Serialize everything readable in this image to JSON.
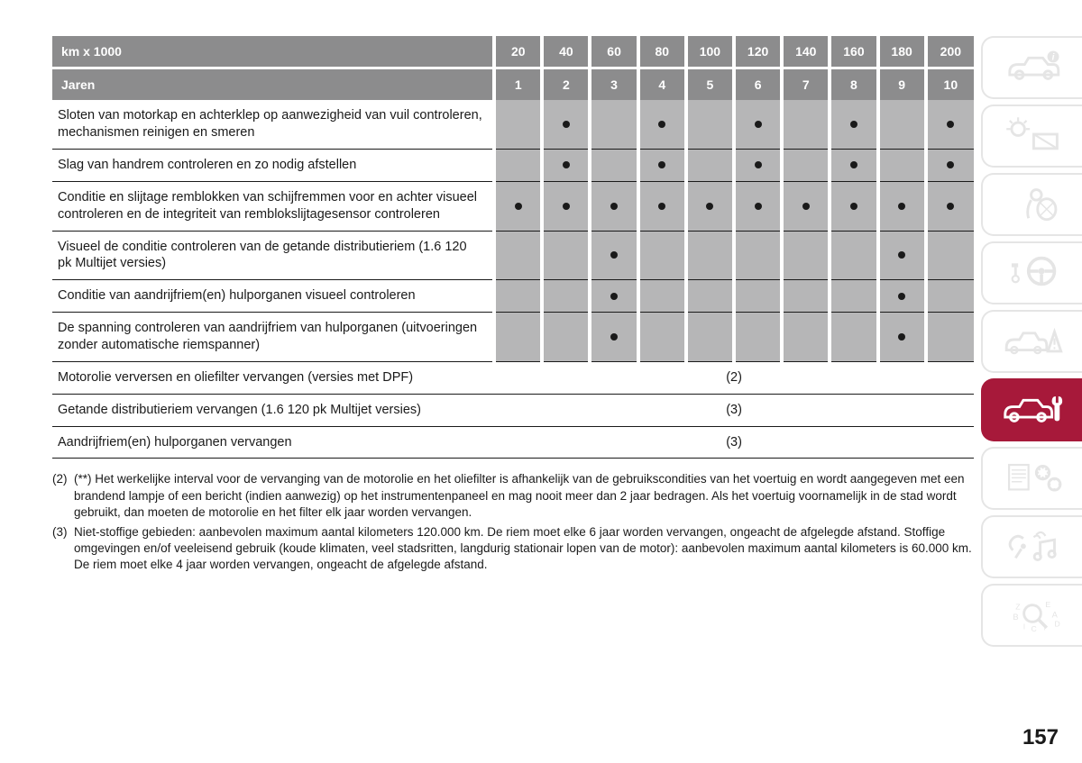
{
  "table": {
    "header_label_1": "km x 1000",
    "header_km": [
      "20",
      "40",
      "60",
      "80",
      "100",
      "120",
      "140",
      "160",
      "180",
      "200"
    ],
    "header_label_2": "Jaren",
    "header_years": [
      "1",
      "2",
      "3",
      "4",
      "5",
      "6",
      "7",
      "8",
      "9",
      "10"
    ],
    "colors": {
      "header_bg": "#8c8c8d",
      "header_fg": "#ffffff",
      "stripe_bg": "#b6b6b7",
      "gap": "#ffffff",
      "rule": "#1a1a1a",
      "dot": "#1a1a1a"
    },
    "rows": [
      {
        "label": "Sloten van motorkap en achterklep op aanwezigheid van vuil controleren, mechanismen reinigen en smeren",
        "marks": [
          0,
          1,
          0,
          1,
          0,
          1,
          0,
          1,
          0,
          1
        ]
      },
      {
        "label": "Slag van handrem controleren en zo nodig afstellen",
        "marks": [
          0,
          1,
          0,
          1,
          0,
          1,
          0,
          1,
          0,
          1
        ]
      },
      {
        "label": "Conditie en slijtage remblokken van schijfremmen voor en achter visueel controleren en de integriteit van remblokslijtagesensor controleren",
        "marks": [
          1,
          1,
          1,
          1,
          1,
          1,
          1,
          1,
          1,
          1
        ]
      },
      {
        "label": "Visueel de conditie controleren van de getande distributieriem (1.6 120 pk Multijet versies)",
        "marks": [
          0,
          0,
          1,
          0,
          0,
          0,
          0,
          0,
          1,
          0
        ]
      },
      {
        "label": "Conditie van aandrijfriem(en) hulporganen visueel controleren",
        "marks": [
          0,
          0,
          1,
          0,
          0,
          0,
          0,
          0,
          1,
          0
        ]
      },
      {
        "label": "De spanning controleren van aandrijfriem van hulporganen (uitvoeringen zonder automatische riemspanner)",
        "marks": [
          0,
          0,
          1,
          0,
          0,
          0,
          0,
          0,
          1,
          0
        ]
      },
      {
        "label": "Motorolie verversen en oliefilter vervangen (versies met DPF)",
        "merged": "(2)"
      },
      {
        "label": "Getande distributieriem vervangen (1.6 120 pk Multijet versies)",
        "merged": "(3)"
      },
      {
        "label": "Aandrijfriem(en) hulporganen vervangen",
        "merged": "(3)"
      }
    ]
  },
  "footnotes": [
    {
      "num": "(2)",
      "text": "(**) Het werkelijke interval voor de vervanging van de motorolie en het oliefilter is afhankelijk van de gebruikscondities van het voertuig en wordt aangegeven met een brandend lampje of een bericht (indien aanwezig) op het instrumentenpaneel en mag nooit meer dan 2 jaar bedragen. Als het voertuig voornamelijk in de stad wordt gebruikt, dan moeten de motorolie en het filter elk jaar worden vervangen."
    },
    {
      "num": "(3)",
      "text": "Niet-stoffige gebieden: aanbevolen maximum aantal kilometers 120.000 km. De riem moet elke 6 jaar worden vervangen, ongeacht de afgelegde afstand. Stoffige omgevingen en/of veeleisend gebruik (koude klimaten, veel stadsritten, langdurig stationair lopen van de motor): aanbevolen maximum aantal kilometers is 60.000 km. De riem moet elke 4 jaar worden vervangen, ongeacht de afgelegde afstand."
    }
  ],
  "page_number": "157",
  "tabs": {
    "active_index": 5,
    "items": [
      {
        "name": "car-info-icon"
      },
      {
        "name": "lights-icon"
      },
      {
        "name": "safety-icon"
      },
      {
        "name": "steering-icon"
      },
      {
        "name": "warning-car-icon"
      },
      {
        "name": "maintenance-icon"
      },
      {
        "name": "specs-icon"
      },
      {
        "name": "multimedia-icon"
      },
      {
        "name": "index-icon"
      }
    ],
    "active_bg": "#a7193a",
    "inactive_stroke": "#e5e5e5"
  }
}
